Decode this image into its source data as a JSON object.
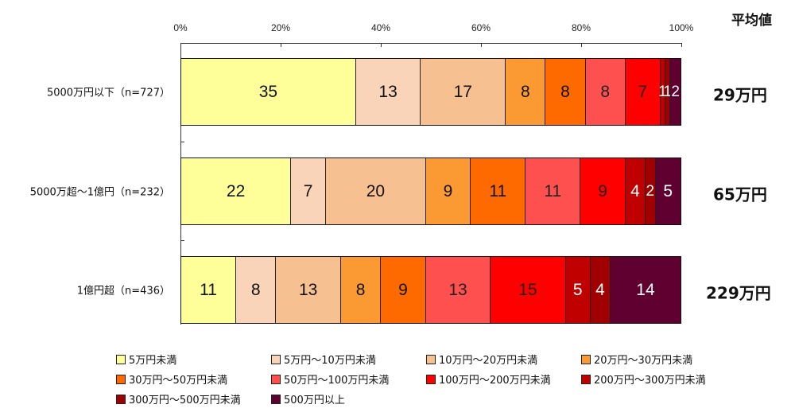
{
  "chart_data": {
    "type": "bar",
    "orientation": "horizontal",
    "stacked": true,
    "percent": true,
    "title": "",
    "xlabel": "",
    "ylabel": "",
    "xlim": [
      0,
      100
    ],
    "x_ticks": [
      "0%",
      "20%",
      "40%",
      "60%",
      "80%",
      "100%"
    ],
    "grid": false,
    "legend_position": "bottom",
    "categories": [
      "5000万円以下（n=727）",
      "5000万超～1億円（n=232）",
      "1億円超（n=436）"
    ],
    "series": [
      {
        "name": "5万円未満",
        "color": "#ffff99",
        "values": [
          35,
          22,
          11
        ]
      },
      {
        "name": "5万円～10万円未満",
        "color": "#fad4b8",
        "values": [
          13,
          7,
          8
        ]
      },
      {
        "name": "10万円～20万円未満",
        "color": "#f7c090",
        "values": [
          17,
          20,
          13
        ]
      },
      {
        "name": "20万円～30万円未満",
        "color": "#fb9a32",
        "values": [
          8,
          9,
          8
        ]
      },
      {
        "name": "30万円～50万円未満",
        "color": "#ff6a00",
        "values": [
          8,
          11,
          9
        ]
      },
      {
        "name": "50万円～100万円未満",
        "color": "#ff5050",
        "values": [
          8,
          11,
          13
        ]
      },
      {
        "name": "100万円～200万円未満",
        "color": "#ff0000",
        "values": [
          7,
          9,
          15
        ]
      },
      {
        "name": "200万円～300万円未満",
        "color": "#c00000",
        "values": [
          1,
          4,
          5
        ]
      },
      {
        "name": "300万円～500万円未満",
        "color": "#a00000",
        "values": [
          1,
          2,
          4
        ]
      },
      {
        "name": "500万円以上",
        "color": "#600030",
        "values": [
          2,
          5,
          14
        ]
      }
    ],
    "annotations": {
      "average_header": "平均値",
      "averages": [
        "29万円",
        "65万円",
        "229万円"
      ]
    }
  },
  "axis": {
    "ticks": [
      "0%",
      "20%",
      "40%",
      "60%",
      "80%",
      "100%"
    ]
  },
  "avg_header": "平均値",
  "rows": [
    {
      "label": "5000万円以下（n=727）",
      "average": "29万円",
      "segments": [
        "35",
        "13",
        "17",
        "8",
        "8",
        "8",
        "7",
        "1",
        "1",
        "2"
      ]
    },
    {
      "label": "5000万超～1億円（n=232）",
      "average": "65万円",
      "segments": [
        "22",
        "7",
        "20",
        "9",
        "11",
        "11",
        "9",
        "4",
        "2",
        "5"
      ]
    },
    {
      "label": "1億円超（n=436）",
      "average": "229万円",
      "segments": [
        "11",
        "8",
        "13",
        "8",
        "9",
        "13",
        "15",
        "5",
        "4",
        "14"
      ]
    }
  ],
  "legend": [
    "5万円未満",
    "5万円～10万円未満",
    "10万円～20万円未満",
    "20万円～30万円未満",
    "30万円～50万円未満",
    "50万円～100万円未満",
    "100万円～200万円未満",
    "200万円～300万円未満",
    "300万円～500万円未満",
    "500万円以上"
  ]
}
